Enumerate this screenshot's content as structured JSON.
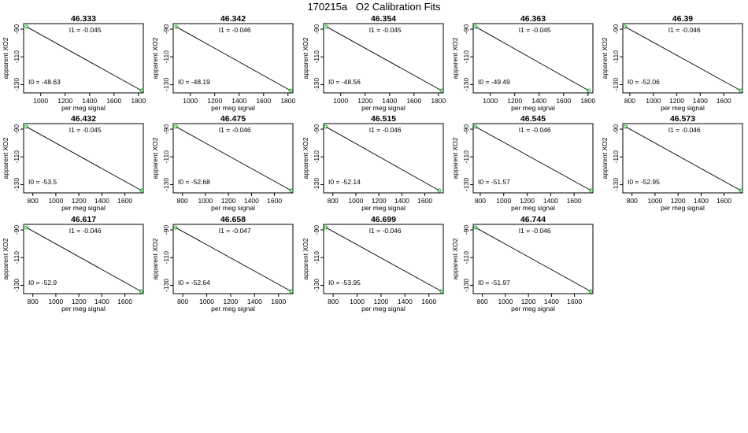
{
  "main_title": "170215a   O2 Calibration Fits",
  "chart_data": {
    "type": "scatter",
    "xlabel": "per meg signal",
    "ylabel": "apparent XO2",
    "ylim": [
      -136,
      -86
    ],
    "y_ticks": [
      {
        "value": -90,
        "label": "-90"
      },
      {
        "value": -110,
        "label": "-110"
      },
      {
        "value": -130,
        "label": "-130"
      }
    ],
    "series_color": "#22bb22",
    "panels": [
      {
        "title": "46.333",
        "xlim": [
          860,
          1840
        ],
        "x_ticks": [
          1000,
          1200,
          1400,
          1600,
          1800
        ],
        "I1_label": "I1 =  -0.045",
        "I0_label": "I0 =  -48.63",
        "points": [
          [
            885,
            -88.3
          ],
          [
            1825,
            -134.3
          ]
        ]
      },
      {
        "title": "46.342",
        "xlim": [
          860,
          1840
        ],
        "x_ticks": [
          1000,
          1200,
          1400,
          1600,
          1800
        ],
        "I1_label": "I1 =  -0.046",
        "I0_label": "I0 =  -48.19",
        "points": [
          [
            885,
            -88.3
          ],
          [
            1820,
            -134.3
          ]
        ]
      },
      {
        "title": "46.354",
        "xlim": [
          860,
          1840
        ],
        "x_ticks": [
          1000,
          1200,
          1400,
          1600,
          1800
        ],
        "I1_label": "I1 =  -0.045",
        "I0_label": "I0 =  -48.56",
        "points": [
          [
            885,
            -88.3
          ],
          [
            1825,
            -134.3
          ]
        ]
      },
      {
        "title": "46.363",
        "xlim": [
          860,
          1840
        ],
        "x_ticks": [
          1000,
          1200,
          1400,
          1600,
          1800
        ],
        "I1_label": "I1 =  -0.045",
        "I0_label": "I0 =  -49.49",
        "points": [
          [
            880,
            -88.3
          ],
          [
            1805,
            -134.3
          ]
        ]
      },
      {
        "title": "46.39",
        "xlim": [
          740,
          1760
        ],
        "x_ticks": [
          800,
          1000,
          1200,
          1400,
          1600
        ],
        "I1_label": "I1 =  -0.046",
        "I0_label": "I0 =  -52.06",
        "points": [
          [
            760,
            -88.3
          ],
          [
            1745,
            -134.3
          ]
        ]
      },
      {
        "title": "46.432",
        "xlim": [
          720,
          1760
        ],
        "x_ticks": [
          800,
          1000,
          1200,
          1400,
          1600
        ],
        "I1_label": "I1 =  -0.045",
        "I0_label": "I0 =  -53.5",
        "points": [
          [
            745,
            -88.3
          ],
          [
            1745,
            -134.3
          ]
        ]
      },
      {
        "title": "46.475",
        "xlim": [
          720,
          1760
        ],
        "x_ticks": [
          800,
          1000,
          1200,
          1400,
          1600
        ],
        "I1_label": "I1 =  -0.046",
        "I0_label": "I0 =  -52.68",
        "points": [
          [
            745,
            -88.3
          ],
          [
            1745,
            -134.3
          ]
        ]
      },
      {
        "title": "46.515",
        "xlim": [
          720,
          1760
        ],
        "x_ticks": [
          800,
          1000,
          1200,
          1400,
          1600
        ],
        "I1_label": "I1 =  -0.046",
        "I0_label": "I0 =  -52.14",
        "points": [
          [
            740,
            -88.3
          ],
          [
            1725,
            -134.3
          ]
        ]
      },
      {
        "title": "46.545",
        "xlim": [
          740,
          1760
        ],
        "x_ticks": [
          800,
          1000,
          1200,
          1400,
          1600
        ],
        "I1_label": "I1 =  -0.046",
        "I0_label": "I0 =  -51.57",
        "points": [
          [
            760,
            -88.3
          ],
          [
            1745,
            -134.3
          ]
        ]
      },
      {
        "title": "46.573",
        "xlim": [
          720,
          1760
        ],
        "x_ticks": [
          800,
          1000,
          1200,
          1400,
          1600
        ],
        "I1_label": "I1 =  -0.046",
        "I0_label": "I0 =  -52.95",
        "points": [
          [
            745,
            -88.3
          ],
          [
            1745,
            -134.3
          ]
        ]
      },
      {
        "title": "46.617",
        "xlim": [
          720,
          1760
        ],
        "x_ticks": [
          800,
          1000,
          1200,
          1400,
          1600
        ],
        "I1_label": "I1 =  -0.046",
        "I0_label": "I0 =  -52.9",
        "points": [
          [
            745,
            -88.3
          ],
          [
            1740,
            -134.3
          ]
        ]
      },
      {
        "title": "46.658",
        "xlim": [
          720,
          1720
        ],
        "x_ticks": [
          800,
          1000,
          1200,
          1400,
          1600
        ],
        "I1_label": "I1 =  -0.047",
        "I0_label": "I0 =  -52.64",
        "points": [
          [
            740,
            -88.3
          ],
          [
            1705,
            -134.3
          ]
        ]
      },
      {
        "title": "46.699",
        "xlim": [
          720,
          1720
        ],
        "x_ticks": [
          800,
          1000,
          1200,
          1400,
          1600
        ],
        "I1_label": "I1 =  -0.046",
        "I0_label": "I0 =  -53.95",
        "points": [
          [
            740,
            -88.3
          ],
          [
            1705,
            -134.3
          ]
        ]
      },
      {
        "title": "46.744",
        "xlim": [
          720,
          1760
        ],
        "x_ticks": [
          800,
          1000,
          1200,
          1400,
          1600
        ],
        "I1_label": "I1 =  -0.046",
        "I0_label": "I0 =  -51.97",
        "points": [
          [
            740,
            -88.3
          ],
          [
            1740,
            -134.3
          ]
        ]
      }
    ]
  }
}
